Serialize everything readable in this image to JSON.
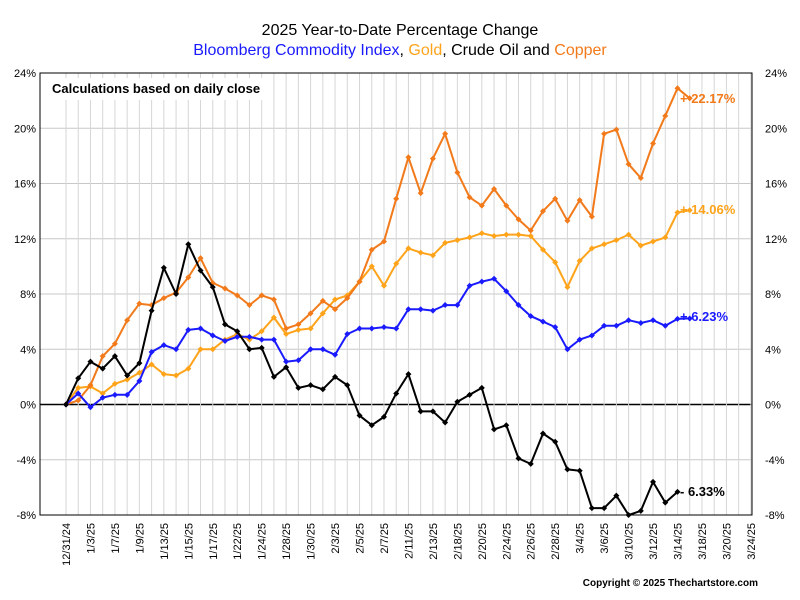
{
  "chart_data": {
    "type": "line",
    "title": "2025 Year-to-Date Percentage Change",
    "subtitle_parts": [
      {
        "text": "Bloomberg Commodity Index",
        "color": "#1a1aff"
      },
      {
        "text": ", ",
        "color": "#000000"
      },
      {
        "text": "Gold",
        "color": "#ffa31a"
      },
      {
        "text": ", Crude Oil and ",
        "color": "#000000"
      },
      {
        "text": "Copper",
        "color": "#f27a1a"
      }
    ],
    "note": "Calculations based on daily close",
    "copyright": "Copyright © 2025 Thechartstore.com",
    "ylim": [
      -8,
      24
    ],
    "y_ticks": [
      -8,
      -4,
      0,
      4,
      8,
      12,
      16,
      20,
      24
    ],
    "y_tick_labels": [
      "-8%",
      "-4%",
      "0%",
      "4%",
      "8%",
      "12%",
      "16%",
      "20%",
      "24%"
    ],
    "x_ticks": [
      "12/31/24",
      "1/3/25",
      "1/7/25",
      "1/9/25",
      "1/13/25",
      "1/15/25",
      "1/17/25",
      "1/22/25",
      "1/24/25",
      "1/28/25",
      "1/30/25",
      "2/3/25",
      "2/5/25",
      "2/7/25",
      "2/11/25",
      "2/13/25",
      "2/18/25",
      "2/20/25",
      "2/24/25",
      "2/26/25",
      "2/28/25",
      "3/4/25",
      "3/6/25",
      "3/10/25",
      "3/12/25",
      "3/14/25",
      "3/18/25",
      "3/20/25",
      "3/24/25"
    ],
    "grid": true,
    "x_domain": [
      0,
      56
    ],
    "series": [
      {
        "key": "copper",
        "color": "#f27a1a",
        "end_label": "+ 22.17%",
        "values": [
          0,
          0.3,
          1.4,
          3.5,
          4.4,
          6.1,
          7.3,
          7.2,
          7.7,
          8.1,
          9.2,
          10.6,
          8.8,
          8.4,
          7.9,
          7.2,
          7.9,
          7.6,
          5.5,
          5.8,
          6.6,
          7.5,
          6.9,
          7.7,
          8.9,
          11.2,
          11.8,
          14.9,
          17.9,
          15.3,
          17.8,
          19.6,
          16.8,
          15.0,
          14.4,
          15.6,
          14.4,
          13.4,
          12.6,
          14.0,
          14.9,
          13.3,
          14.8,
          13.6,
          19.6,
          19.9,
          17.4,
          16.4,
          18.9,
          20.9,
          22.9,
          22.17
        ]
      },
      {
        "key": "gold",
        "color": "#ffa31a",
        "end_label": "+ 14.06%",
        "values": [
          0,
          1.2,
          1.3,
          0.8,
          1.5,
          1.8,
          2.3,
          2.9,
          2.2,
          2.1,
          2.6,
          4.0,
          4.0,
          4.7,
          5.1,
          4.7,
          5.3,
          6.3,
          5.1,
          5.4,
          5.5,
          6.6,
          7.6,
          7.9,
          8.9,
          10.0,
          8.6,
          10.2,
          11.3,
          11.0,
          10.8,
          11.7,
          11.9,
          12.1,
          12.4,
          12.2,
          12.3,
          12.3,
          12.2,
          11.2,
          10.3,
          8.5,
          10.4,
          11.3,
          11.6,
          11.9,
          12.3,
          11.5,
          11.8,
          12.1,
          13.9,
          14.06
        ]
      },
      {
        "key": "bcom",
        "color": "#1a1aff",
        "end_label": "+ 6.23%",
        "values": [
          0,
          0.8,
          -0.2,
          0.5,
          0.7,
          0.7,
          1.7,
          3.8,
          4.3,
          4.0,
          5.4,
          5.5,
          5.0,
          4.6,
          4.9,
          4.9,
          4.7,
          4.7,
          3.1,
          3.2,
          4.0,
          4.0,
          3.6,
          5.1,
          5.5,
          5.5,
          5.6,
          5.5,
          6.9,
          6.9,
          6.8,
          7.2,
          7.2,
          8.6,
          8.9,
          9.1,
          8.2,
          7.2,
          6.4,
          6.0,
          5.6,
          4.0,
          4.7,
          5.0,
          5.7,
          5.7,
          6.1,
          5.9,
          6.1,
          5.7,
          6.2,
          6.23
        ]
      },
      {
        "key": "crude",
        "color": "#000000",
        "end_label": "- 6.33%",
        "values": [
          0,
          1.9,
          3.1,
          2.6,
          3.5,
          2.1,
          3.0,
          6.8,
          9.9,
          8.0,
          11.6,
          9.7,
          8.5,
          5.8,
          5.3,
          4.0,
          4.1,
          2.0,
          2.7,
          1.2,
          1.4,
          1.1,
          2.0,
          1.4,
          -0.8,
          -1.5,
          -0.9,
          0.8,
          2.2,
          -0.5,
          -0.5,
          -1.3,
          0.2,
          0.7,
          1.2,
          -1.8,
          -1.5,
          -3.9,
          -4.3,
          -2.1,
          -2.7,
          -4.7,
          -4.8,
          -7.5,
          -7.5,
          -6.6,
          -8.0,
          -7.7,
          -5.6,
          -7.1,
          -6.33
        ]
      }
    ]
  }
}
